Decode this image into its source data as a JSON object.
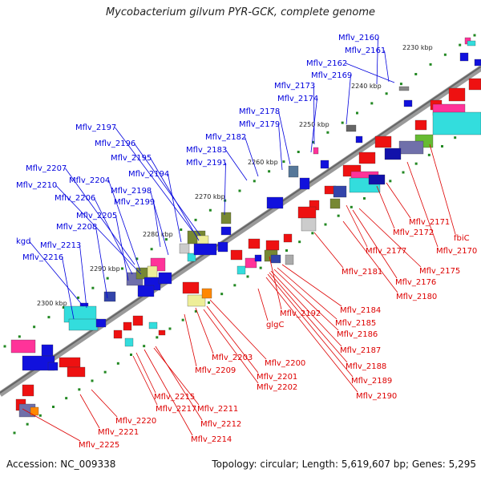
{
  "title": "Mycobacterium gilvum PYR-GCK, complete genome",
  "footer": {
    "accession": "Accession: NC_009338",
    "summary": "Topology: circular; Length: 5,619,607 bp; Genes: 5,295"
  },
  "colors": {
    "forward_label": "#0000dd",
    "reverse_label": "#dd0000",
    "backbone": "#777777",
    "ruler_tick": "#228822"
  },
  "ticks": [
    "2230 kbp",
    "2240 kbp",
    "2250 kbp",
    "2260 kbp",
    "2270 kbp",
    "2280 kbp",
    "2290 kbp",
    "2300 kbp"
  ],
  "blue_labels": [
    "Mflv_2160",
    "Mflv_2161",
    "Mflv_2162",
    "Mflv_2169",
    "Mflv_2173",
    "Mflv_2174",
    "Mflv_2178",
    "Mflv_2179",
    "Mflv_2182",
    "Mflv_2183",
    "Mflv_2197",
    "Mflv_2196",
    "Mflv_2195",
    "Mflv_2191",
    "Mflv_2194",
    "Mflv_2207",
    "Mflv_2204",
    "Mflv_2210",
    "Mflv_2198",
    "Mflv_2206",
    "Mflv_2199",
    "Mflv_2205",
    "Mflv_2208",
    "kgd",
    "Mflv_2213",
    "Mflv_2216"
  ],
  "red_labels": [
    "Mflv_2171",
    "Mflv_2172",
    "fbiC",
    "Mflv_2170",
    "Mflv_2177",
    "Mflv_2175",
    "Mflv_2176",
    "Mflv_2181",
    "Mflv_2180",
    "Mflv_2184",
    "Mflv_2192",
    "Mflv_2185",
    "glgC",
    "Mflv_2186",
    "Mflv_2187",
    "Mflv_2188",
    "Mflv_2200",
    "Mflv_2203",
    "Mflv_2189",
    "Mflv_2209",
    "Mflv_2201",
    "Mflv_2202",
    "Mflv_2190",
    "Mflv_2215",
    "Mflv_2211",
    "Mflv_2217",
    "Mflv_2212",
    "Mflv_2220",
    "Mflv_2221",
    "Mflv_2214",
    "Mflv_2225"
  ]
}
